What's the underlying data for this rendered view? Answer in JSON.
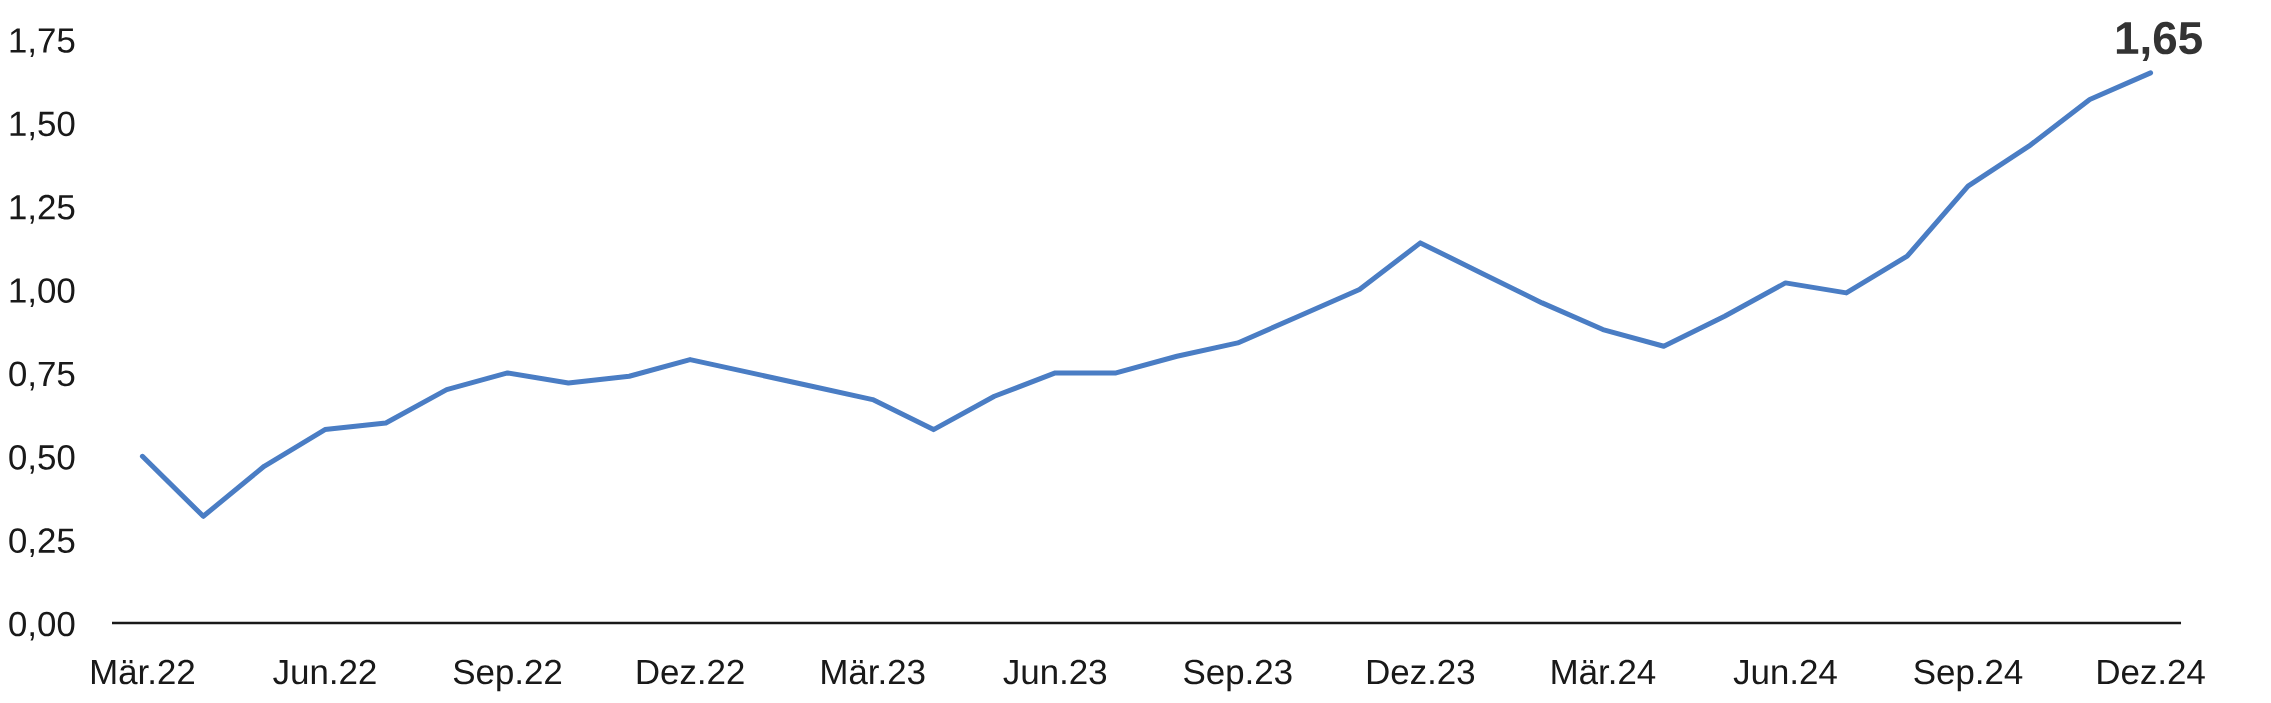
{
  "chart_data": {
    "type": "line",
    "categories": [
      "Mär.22",
      null,
      null,
      "Jun.22",
      null,
      null,
      "Sep.22",
      null,
      null,
      "Dez.22",
      null,
      null,
      "Mär.23",
      null,
      null,
      "Jun.23",
      null,
      null,
      "Sep.23",
      null,
      null,
      "Dez.23",
      null,
      null,
      "Mär.24",
      null,
      null,
      "Jun.24",
      null,
      null,
      "Sep.24",
      null,
      null,
      "Dez.24"
    ],
    "values": [
      0.5,
      0.32,
      0.47,
      0.58,
      0.6,
      0.7,
      0.75,
      0.72,
      0.74,
      0.79,
      0.75,
      0.71,
      0.67,
      0.58,
      0.68,
      0.75,
      0.75,
      0.8,
      0.84,
      0.92,
      1.0,
      1.14,
      1.05,
      0.96,
      0.88,
      0.83,
      0.92,
      1.02,
      0.99,
      1.1,
      1.31,
      1.43,
      1.57,
      1.65
    ],
    "value_labels": [
      null,
      null,
      null,
      null,
      null,
      null,
      null,
      null,
      null,
      null,
      null,
      null,
      null,
      null,
      null,
      null,
      null,
      null,
      null,
      null,
      null,
      null,
      null,
      null,
      null,
      null,
      null,
      null,
      null,
      null,
      null,
      null,
      null,
      "1,65"
    ],
    "color": "#4a7dc4",
    "ylim": [
      0,
      1.75
    ],
    "yticks": [
      {
        "value": 0,
        "label": "0,00"
      },
      {
        "value": 0.25,
        "label": "0,25"
      },
      {
        "value": 0.5,
        "label": "0,50"
      },
      {
        "value": 0.75,
        "label": "0,75"
      },
      {
        "value": 1,
        "label": "1,00"
      },
      {
        "value": 1.25,
        "label": "1,25"
      },
      {
        "value": 1.5,
        "label": "1,50"
      },
      {
        "value": 1.75,
        "label": "1,75"
      }
    ]
  }
}
